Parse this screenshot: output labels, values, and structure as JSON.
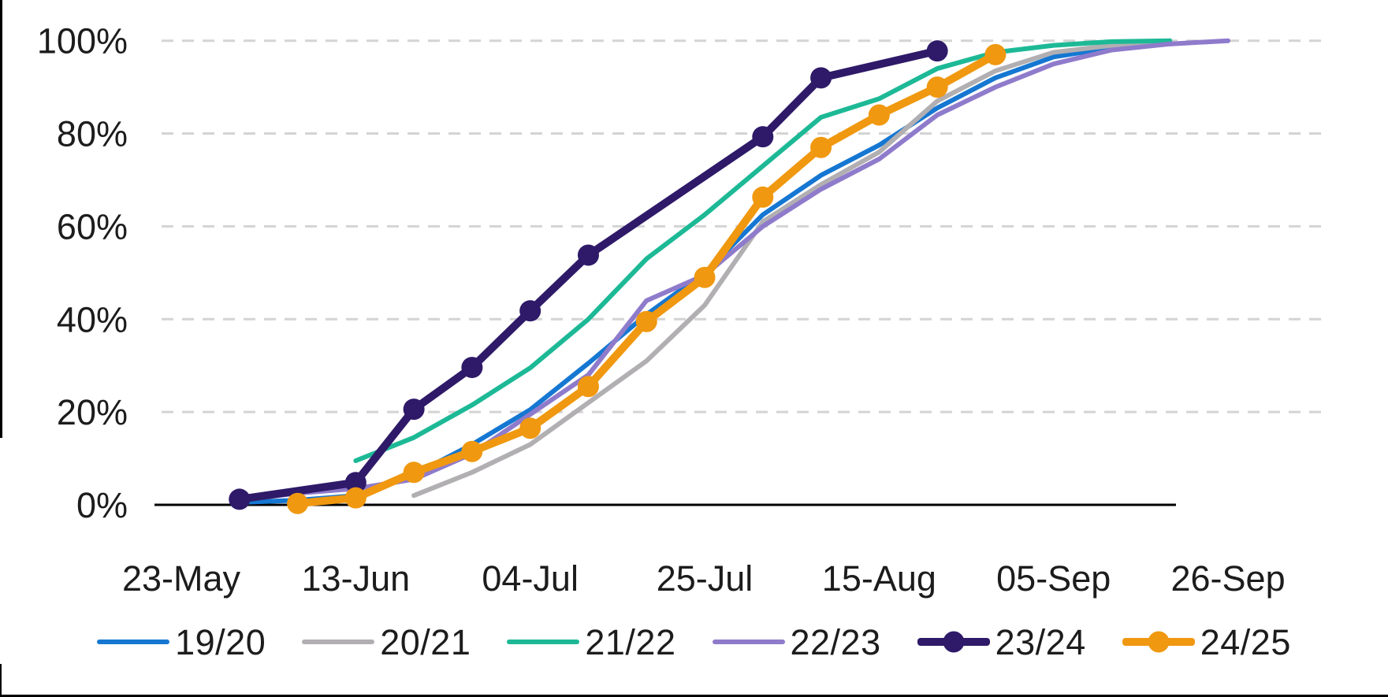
{
  "page": {
    "background": "#ffffff",
    "screenshot_border_color": "#000000"
  },
  "chart_data": {
    "type": "line",
    "title": "",
    "x_tick_labels": [
      "23-May",
      "13-Jun",
      "04-Jul",
      "25-Jul",
      "15-Aug",
      "05-Sep",
      "26-Sep"
    ],
    "y_tick_labels": [
      "0%",
      "20%",
      "40%",
      "60%",
      "80%",
      "100%"
    ],
    "y_axis": {
      "min": 0,
      "max": 100,
      "step": 20,
      "unit": "%"
    },
    "x_axis": {
      "start": "23-May",
      "end": "26-Sep",
      "tick_interval_days": 21
    },
    "grid": {
      "dashed": true,
      "color": "#d4d4d4"
    },
    "axis_line_color": "#000000",
    "text_color": "#1c1c1c",
    "legend_position": "bottom",
    "series": [
      {
        "name": "19/20",
        "color": "#1577d2",
        "marker": false,
        "line_width": 6,
        "points": [
          [
            "30-May",
            0.5
          ],
          [
            "06-Jun",
            1
          ],
          [
            "13-Jun",
            2
          ],
          [
            "20-Jun",
            6.5
          ],
          [
            "27-Jun",
            13
          ],
          [
            "04-Jul",
            20.5
          ],
          [
            "11-Jul",
            30.5
          ],
          [
            "18-Jul",
            41
          ],
          [
            "25-Jul",
            50
          ],
          [
            "01-Aug",
            62.5
          ],
          [
            "08-Aug",
            71
          ],
          [
            "15-Aug",
            77.5
          ],
          [
            "22-Aug",
            85.5
          ],
          [
            "29-Aug",
            92
          ],
          [
            "05-Sep",
            96.5
          ],
          [
            "12-Sep",
            98.5
          ],
          [
            "19-Sep",
            99.6
          ]
        ]
      },
      {
        "name": "20/21",
        "color": "#b1afb2",
        "marker": false,
        "line_width": 6,
        "points": [
          [
            "20-Jun",
            2
          ],
          [
            "27-Jun",
            7
          ],
          [
            "04-Jul",
            13
          ],
          [
            "11-Jul",
            22
          ],
          [
            "18-Jul",
            31
          ],
          [
            "25-Jul",
            43
          ],
          [
            "01-Aug",
            61
          ],
          [
            "08-Aug",
            69
          ],
          [
            "15-Aug",
            76
          ],
          [
            "22-Aug",
            87
          ],
          [
            "29-Aug",
            93.5
          ],
          [
            "05-Sep",
            97.5
          ],
          [
            "12-Sep",
            99
          ],
          [
            "19-Sep",
            100
          ]
        ]
      },
      {
        "name": "21/22",
        "color": "#1db996",
        "marker": false,
        "line_width": 6,
        "points": [
          [
            "13-Jun",
            9.5
          ],
          [
            "20-Jun",
            14.5
          ],
          [
            "27-Jun",
            21.5
          ],
          [
            "04-Jul",
            29.5
          ],
          [
            "11-Jul",
            40
          ],
          [
            "18-Jul",
            53
          ],
          [
            "25-Jul",
            62.5
          ],
          [
            "01-Aug",
            73
          ],
          [
            "08-Aug",
            83.5
          ],
          [
            "15-Aug",
            87.5
          ],
          [
            "22-Aug",
            94
          ],
          [
            "29-Aug",
            97.5
          ],
          [
            "05-Sep",
            99
          ],
          [
            "12-Sep",
            99.8
          ],
          [
            "19-Sep",
            100
          ]
        ]
      },
      {
        "name": "22/23",
        "color": "#8f7bcb",
        "marker": false,
        "line_width": 6,
        "points": [
          [
            "30-May",
            1
          ],
          [
            "06-Jun",
            2.5
          ],
          [
            "13-Jun",
            3.5
          ],
          [
            "20-Jun",
            5.5
          ],
          [
            "27-Jun",
            11
          ],
          [
            "04-Jul",
            19.5
          ],
          [
            "11-Jul",
            28
          ],
          [
            "18-Jul",
            44
          ],
          [
            "25-Jul",
            49.5
          ],
          [
            "01-Aug",
            60
          ],
          [
            "08-Aug",
            68
          ],
          [
            "15-Aug",
            74.5
          ],
          [
            "22-Aug",
            84
          ],
          [
            "29-Aug",
            90
          ],
          [
            "05-Sep",
            95
          ],
          [
            "12-Sep",
            98
          ],
          [
            "19-Sep",
            99.3
          ],
          [
            "26-Sep",
            100
          ]
        ]
      },
      {
        "name": "23/24",
        "color": "#2e1a68",
        "marker": true,
        "line_width": 10,
        "points": [
          [
            "30-May",
            1.2
          ],
          [
            "13-Jun",
            4.8
          ],
          [
            "20-Jun",
            20.6
          ],
          [
            "27-Jun",
            29.6
          ],
          [
            "04-Jul",
            41.8
          ],
          [
            "11-Jul",
            53.8
          ],
          [
            "01-Aug",
            79.3
          ],
          [
            "08-Aug",
            92
          ],
          [
            "22-Aug",
            97.8
          ]
        ]
      },
      {
        "name": "24/25",
        "color": "#f0980f",
        "marker": true,
        "line_width": 10,
        "points": [
          [
            "06-Jun",
            0.3
          ],
          [
            "13-Jun",
            1.5
          ],
          [
            "20-Jun",
            7
          ],
          [
            "27-Jun",
            11.5
          ],
          [
            "04-Jul",
            16.5
          ],
          [
            "11-Jul",
            25.5
          ],
          [
            "18-Jul",
            39.5
          ],
          [
            "25-Jul",
            49
          ],
          [
            "01-Aug",
            66.3
          ],
          [
            "08-Aug",
            77
          ],
          [
            "15-Aug",
            84
          ],
          [
            "22-Aug",
            90
          ],
          [
            "29-Aug",
            97
          ]
        ]
      }
    ]
  }
}
